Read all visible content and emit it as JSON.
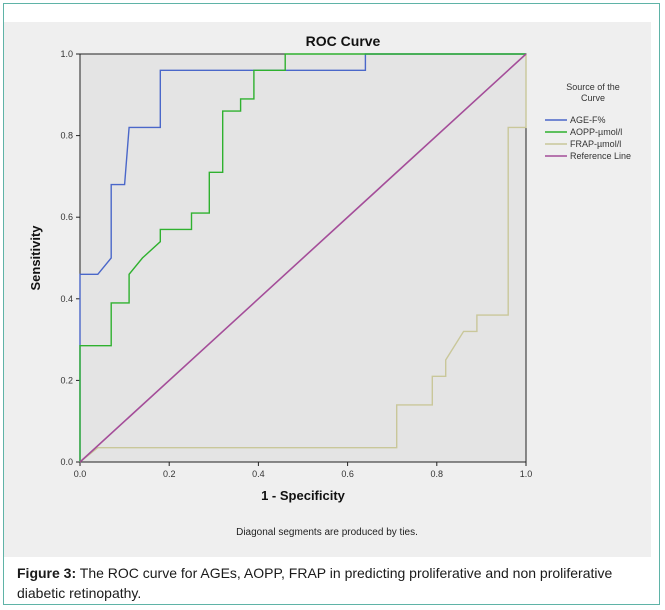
{
  "chart_data": {
    "type": "line",
    "title": "ROC Curve",
    "xlabel": "1 - Specificity",
    "ylabel": "Sensitivity",
    "xlim": [
      0,
      1
    ],
    "ylim": [
      0,
      1
    ],
    "x_ticks": [
      "0.0",
      "0.2",
      "0.4",
      "0.6",
      "0.8",
      "1.0"
    ],
    "y_ticks": [
      "0.0",
      "0.2",
      "0.4",
      "0.6",
      "0.8",
      "1.0"
    ],
    "grid": false,
    "legend_title": "Source of the Curve",
    "legend_position": "right",
    "note": "Diagonal segments are produced by ties.",
    "series": [
      {
        "name": "AGE-F%",
        "color": "#4a67c9",
        "points": [
          [
            0,
            0
          ],
          [
            0,
            0.46
          ],
          [
            0.04,
            0.46
          ],
          [
            0.07,
            0.5
          ],
          [
            0.07,
            0.68
          ],
          [
            0.1,
            0.68
          ],
          [
            0.11,
            0.82
          ],
          [
            0.18,
            0.82
          ],
          [
            0.18,
            0.96
          ],
          [
            0.64,
            0.96
          ],
          [
            0.64,
            1.0
          ],
          [
            1.0,
            1.0
          ]
        ]
      },
      {
        "name": "AOPP-µmol/l",
        "color": "#2fb12f",
        "points": [
          [
            0,
            0
          ],
          [
            0,
            0.285
          ],
          [
            0.07,
            0.285
          ],
          [
            0.07,
            0.39
          ],
          [
            0.11,
            0.39
          ],
          [
            0.11,
            0.46
          ],
          [
            0.14,
            0.5
          ],
          [
            0.18,
            0.54
          ],
          [
            0.18,
            0.57
          ],
          [
            0.25,
            0.57
          ],
          [
            0.25,
            0.61
          ],
          [
            0.29,
            0.61
          ],
          [
            0.29,
            0.71
          ],
          [
            0.32,
            0.71
          ],
          [
            0.32,
            0.86
          ],
          [
            0.36,
            0.86
          ],
          [
            0.36,
            0.89
          ],
          [
            0.39,
            0.89
          ],
          [
            0.39,
            0.96
          ],
          [
            0.46,
            0.96
          ],
          [
            0.46,
            1.0
          ],
          [
            1.0,
            1.0
          ]
        ]
      },
      {
        "name": "FRAP-µmol/l",
        "color": "#c9c79a",
        "points": [
          [
            0,
            0
          ],
          [
            0.04,
            0.035
          ],
          [
            0.71,
            0.035
          ],
          [
            0.71,
            0.14
          ],
          [
            0.79,
            0.14
          ],
          [
            0.79,
            0.21
          ],
          [
            0.82,
            0.21
          ],
          [
            0.82,
            0.25
          ],
          [
            0.86,
            0.32
          ],
          [
            0.89,
            0.32
          ],
          [
            0.89,
            0.36
          ],
          [
            0.96,
            0.36
          ],
          [
            0.96,
            0.82
          ],
          [
            1.0,
            0.82
          ],
          [
            1.0,
            1.0
          ]
        ]
      },
      {
        "name": "Reference Line",
        "color": "#a44d99",
        "points": [
          [
            0,
            0
          ],
          [
            1,
            1
          ]
        ]
      }
    ]
  },
  "caption": {
    "label": "Figure 3:",
    "text": " The ROC curve for AGEs, AOPP, FRAP in predicting proliferative and non proliferative diabetic retinopathy."
  }
}
